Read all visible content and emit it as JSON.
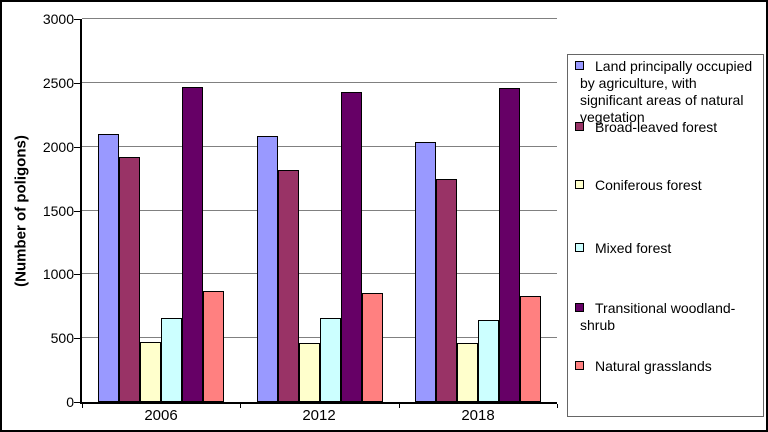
{
  "chart_data": {
    "type": "bar",
    "title": "",
    "ylabel": "(Number of poligons)",
    "xlabel": "",
    "ylim": [
      0,
      3000
    ],
    "yticks": [
      0,
      500,
      1000,
      1500,
      2000,
      2500,
      3000
    ],
    "grid": "horizontal",
    "legend_position": "right",
    "categories": [
      "2006",
      "2012",
      "2018"
    ],
    "series": [
      {
        "name": "Land principally occupied by agriculture, with significant areas of natural vegetation",
        "color": "#9999FF",
        "values": [
          2100,
          2080,
          2040
        ]
      },
      {
        "name": "Broad-leaved forest",
        "color": "#993366",
        "values": [
          1920,
          1820,
          1750
        ]
      },
      {
        "name": "Coniferous forest",
        "color": "#FFFFCC",
        "values": [
          470,
          465,
          460
        ]
      },
      {
        "name": "Mixed forest",
        "color": "#CCFFFF",
        "values": [
          660,
          660,
          640
        ]
      },
      {
        "name": "Transitional woodland-shrub",
        "color": "#660066",
        "values": [
          2470,
          2430,
          2460
        ]
      },
      {
        "name": "Natural grasslands",
        "color": "#FF8080",
        "values": [
          870,
          850,
          830
        ]
      }
    ]
  },
  "colors": {
    "background": "#FFFFFF",
    "gridline": "#808080",
    "axis": "#000000",
    "bar_border": "#000000",
    "legend_border": "#666666",
    "frame_border": "#000000"
  }
}
